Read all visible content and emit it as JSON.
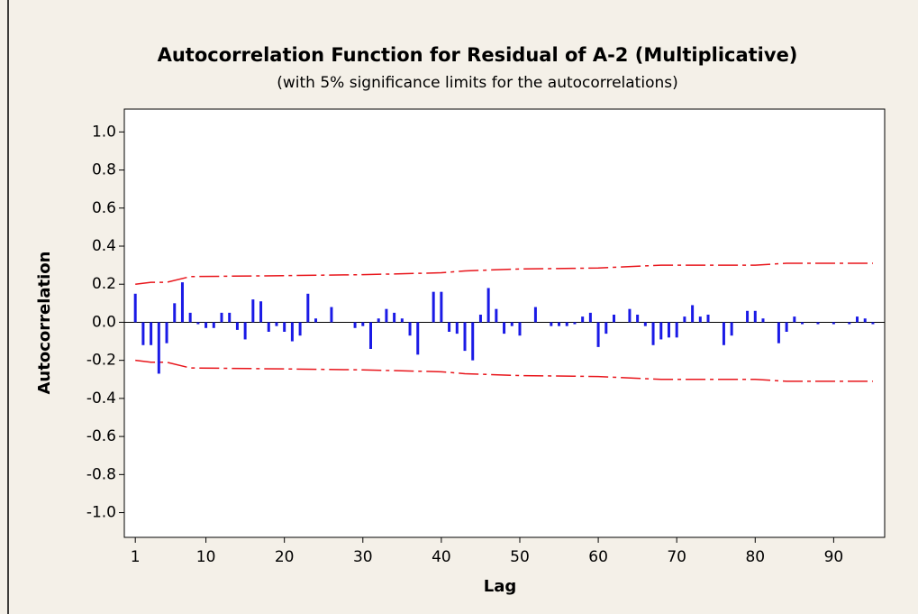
{
  "chart_data": {
    "type": "bar",
    "title": "Autocorrelation Function for Residual of A-2 (Multiplicative)",
    "subtitle": "(with 5% significance limits for the autocorrelations)",
    "x_label": "Lag",
    "y_label": "Autocorrelation",
    "x": [
      1,
      2,
      3,
      4,
      5,
      6,
      7,
      8,
      9,
      10,
      11,
      12,
      13,
      14,
      15,
      16,
      17,
      18,
      19,
      20,
      21,
      22,
      23,
      24,
      25,
      26,
      27,
      28,
      29,
      30,
      31,
      32,
      33,
      34,
      35,
      36,
      37,
      38,
      39,
      40,
      41,
      42,
      43,
      44,
      45,
      46,
      47,
      48,
      49,
      50,
      51,
      52,
      53,
      54,
      55,
      56,
      57,
      58,
      59,
      60,
      61,
      62,
      63,
      64,
      65,
      66,
      67,
      68,
      69,
      70,
      71,
      72,
      73,
      74,
      75,
      76,
      77,
      78,
      79,
      80,
      81,
      82,
      83,
      84,
      85,
      86,
      87,
      88,
      89,
      90,
      91,
      92,
      93,
      94,
      95
    ],
    "values": [
      0.15,
      -0.12,
      -0.12,
      -0.27,
      -0.11,
      0.1,
      0.21,
      0.05,
      -0.01,
      -0.03,
      -0.03,
      0.05,
      0.05,
      -0.04,
      -0.09,
      0.12,
      0.11,
      -0.05,
      -0.02,
      -0.05,
      -0.1,
      -0.07,
      0.15,
      0.02,
      0.0,
      0.08,
      0.0,
      0.0,
      -0.03,
      -0.02,
      -0.14,
      0.02,
      0.07,
      0.05,
      0.02,
      -0.07,
      -0.17,
      0.0,
      0.16,
      0.16,
      -0.05,
      -0.06,
      -0.15,
      -0.2,
      0.04,
      0.18,
      0.07,
      -0.06,
      -0.02,
      -0.07,
      0.0,
      0.08,
      0.0,
      -0.02,
      -0.02,
      -0.02,
      -0.01,
      0.03,
      0.05,
      -0.13,
      -0.06,
      0.04,
      0.0,
      0.07,
      0.04,
      -0.02,
      -0.12,
      -0.09,
      -0.08,
      -0.08,
      0.03,
      0.09,
      0.03,
      0.04,
      0.0,
      -0.12,
      -0.07,
      0.0,
      0.06,
      0.06,
      0.02,
      0.0,
      -0.11,
      -0.05,
      0.03,
      -0.01,
      0.0,
      -0.01,
      0.0,
      -0.01,
      0.0,
      -0.01,
      0.03,
      0.02,
      -0.01
    ],
    "color": "#1a1ae6",
    "limits": [
      {
        "color": "#e8151b",
        "x": [
          1,
          3,
          5,
          8,
          20,
          30,
          40,
          43,
          50,
          60,
          68,
          80,
          84,
          95
        ],
        "values": [
          0.2,
          0.21,
          0.21,
          0.24,
          0.245,
          0.25,
          0.26,
          0.27,
          0.28,
          0.285,
          0.3,
          0.3,
          0.31,
          0.31
        ]
      },
      {
        "color": "#e8151b",
        "x": [
          1,
          3,
          5,
          8,
          20,
          30,
          40,
          43,
          50,
          60,
          68,
          80,
          84,
          95
        ],
        "values": [
          -0.2,
          -0.21,
          -0.21,
          -0.24,
          -0.245,
          -0.25,
          -0.26,
          -0.27,
          -0.28,
          -0.285,
          -0.3,
          -0.3,
          -0.31,
          -0.31
        ]
      }
    ],
    "xlim": [
      -0.4,
      96.5
    ],
    "ylim": [
      -1.13,
      1.12
    ],
    "xticks": [
      1,
      10,
      20,
      30,
      40,
      50,
      60,
      70,
      80,
      90
    ],
    "yticks": [
      {
        "value": 1.0,
        "label": "1.0"
      },
      0.8,
      0.6,
      0.4,
      0.2,
      {
        "value": 0.0,
        "label": "0.0"
      },
      -0.2,
      -0.4,
      -0.6,
      -0.8,
      {
        "value": -1.0,
        "label": "-1.0"
      }
    ]
  }
}
